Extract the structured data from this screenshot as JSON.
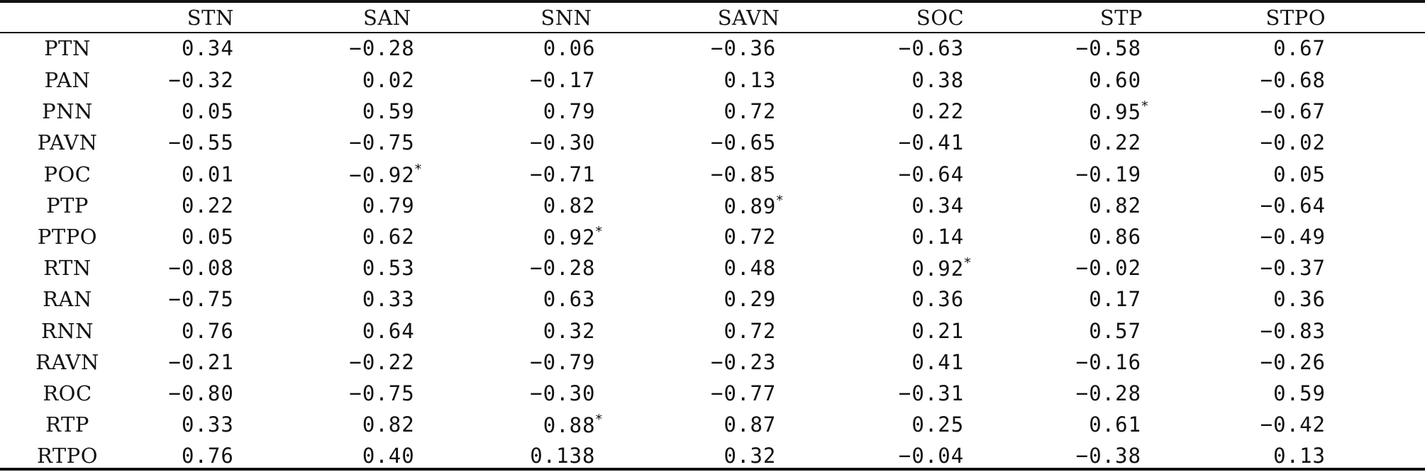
{
  "table": {
    "columns": [
      "",
      "STN",
      "SAN",
      "SNN",
      "SAVN",
      "SOC",
      "STP",
      "STPO"
    ],
    "rows": [
      {
        "label": "PTN",
        "cells": [
          {
            "v": "0.34",
            "s": ""
          },
          {
            "v": "−0.28",
            "s": ""
          },
          {
            "v": "0.06",
            "s": ""
          },
          {
            "v": "−0.36",
            "s": ""
          },
          {
            "v": "−0.63",
            "s": ""
          },
          {
            "v": "−0.58",
            "s": ""
          },
          {
            "v": "0.67",
            "s": ""
          }
        ]
      },
      {
        "label": "PAN",
        "cells": [
          {
            "v": "−0.32",
            "s": ""
          },
          {
            "v": "0.02",
            "s": ""
          },
          {
            "v": "−0.17",
            "s": ""
          },
          {
            "v": "0.13",
            "s": ""
          },
          {
            "v": "0.38",
            "s": ""
          },
          {
            "v": "0.60",
            "s": ""
          },
          {
            "v": "−0.68",
            "s": ""
          }
        ]
      },
      {
        "label": "PNN",
        "cells": [
          {
            "v": "0.05",
            "s": ""
          },
          {
            "v": "0.59",
            "s": ""
          },
          {
            "v": "0.79",
            "s": ""
          },
          {
            "v": "0.72",
            "s": ""
          },
          {
            "v": "0.22",
            "s": ""
          },
          {
            "v": "0.95",
            "s": "*"
          },
          {
            "v": "−0.67",
            "s": ""
          }
        ]
      },
      {
        "label": "PAVN",
        "cells": [
          {
            "v": "−0.55",
            "s": ""
          },
          {
            "v": "−0.75",
            "s": ""
          },
          {
            "v": "−0.30",
            "s": ""
          },
          {
            "v": "−0.65",
            "s": ""
          },
          {
            "v": "−0.41",
            "s": ""
          },
          {
            "v": "0.22",
            "s": ""
          },
          {
            "v": "−0.02",
            "s": ""
          }
        ]
      },
      {
        "label": "POC",
        "cells": [
          {
            "v": "0.01",
            "s": ""
          },
          {
            "v": "−0.92",
            "s": "*"
          },
          {
            "v": "−0.71",
            "s": ""
          },
          {
            "v": "−0.85",
            "s": ""
          },
          {
            "v": "−0.64",
            "s": ""
          },
          {
            "v": "−0.19",
            "s": ""
          },
          {
            "v": "0.05",
            "s": ""
          }
        ]
      },
      {
        "label": "PTP",
        "cells": [
          {
            "v": "0.22",
            "s": ""
          },
          {
            "v": "0.79",
            "s": ""
          },
          {
            "v": "0.82",
            "s": ""
          },
          {
            "v": "0.89",
            "s": "*"
          },
          {
            "v": "0.34",
            "s": ""
          },
          {
            "v": "0.82",
            "s": ""
          },
          {
            "v": "−0.64",
            "s": ""
          }
        ]
      },
      {
        "label": "PTPO",
        "cells": [
          {
            "v": "0.05",
            "s": ""
          },
          {
            "v": "0.62",
            "s": ""
          },
          {
            "v": "0.92",
            "s": "*"
          },
          {
            "v": "0.72",
            "s": ""
          },
          {
            "v": "0.14",
            "s": ""
          },
          {
            "v": "0.86",
            "s": ""
          },
          {
            "v": "−0.49",
            "s": ""
          }
        ]
      },
      {
        "label": "RTN",
        "cells": [
          {
            "v": "−0.08",
            "s": ""
          },
          {
            "v": "0.53",
            "s": ""
          },
          {
            "v": "−0.28",
            "s": ""
          },
          {
            "v": "0.48",
            "s": ""
          },
          {
            "v": "0.92",
            "s": "*"
          },
          {
            "v": "−0.02",
            "s": ""
          },
          {
            "v": "−0.37",
            "s": ""
          }
        ]
      },
      {
        "label": "RAN",
        "cells": [
          {
            "v": "−0.75",
            "s": ""
          },
          {
            "v": "0.33",
            "s": ""
          },
          {
            "v": "0.63",
            "s": ""
          },
          {
            "v": "0.29",
            "s": ""
          },
          {
            "v": "0.36",
            "s": ""
          },
          {
            "v": "0.17",
            "s": ""
          },
          {
            "v": "0.36",
            "s": ""
          }
        ]
      },
      {
        "label": "RNN",
        "cells": [
          {
            "v": "0.76",
            "s": ""
          },
          {
            "v": "0.64",
            "s": ""
          },
          {
            "v": "0.32",
            "s": ""
          },
          {
            "v": "0.72",
            "s": ""
          },
          {
            "v": "0.21",
            "s": ""
          },
          {
            "v": "0.57",
            "s": ""
          },
          {
            "v": "−0.83",
            "s": ""
          }
        ]
      },
      {
        "label": "RAVN",
        "cells": [
          {
            "v": "−0.21",
            "s": ""
          },
          {
            "v": "−0.22",
            "s": ""
          },
          {
            "v": "−0.79",
            "s": ""
          },
          {
            "v": "−0.23",
            "s": ""
          },
          {
            "v": "0.41",
            "s": ""
          },
          {
            "v": "−0.16",
            "s": ""
          },
          {
            "v": "−0.26",
            "s": ""
          }
        ]
      },
      {
        "label": "ROC",
        "cells": [
          {
            "v": "−0.80",
            "s": ""
          },
          {
            "v": "−0.75",
            "s": ""
          },
          {
            "v": "−0.30",
            "s": ""
          },
          {
            "v": "−0.77",
            "s": ""
          },
          {
            "v": "−0.31",
            "s": ""
          },
          {
            "v": "−0.28",
            "s": ""
          },
          {
            "v": "0.59",
            "s": ""
          }
        ]
      },
      {
        "label": "RTP",
        "cells": [
          {
            "v": "0.33",
            "s": ""
          },
          {
            "v": "0.82",
            "s": ""
          },
          {
            "v": "0.88",
            "s": "*"
          },
          {
            "v": "0.87",
            "s": ""
          },
          {
            "v": "0.25",
            "s": ""
          },
          {
            "v": "0.61",
            "s": ""
          },
          {
            "v": "−0.42",
            "s": ""
          }
        ]
      },
      {
        "label": "RTPO",
        "cells": [
          {
            "v": "0.76",
            "s": ""
          },
          {
            "v": "0.40",
            "s": ""
          },
          {
            "v": "0.138",
            "s": ""
          },
          {
            "v": "0.32",
            "s": ""
          },
          {
            "v": "−0.04",
            "s": ""
          },
          {
            "v": "−0.38",
            "s": ""
          },
          {
            "v": "0.13",
            "s": ""
          }
        ]
      }
    ]
  }
}
